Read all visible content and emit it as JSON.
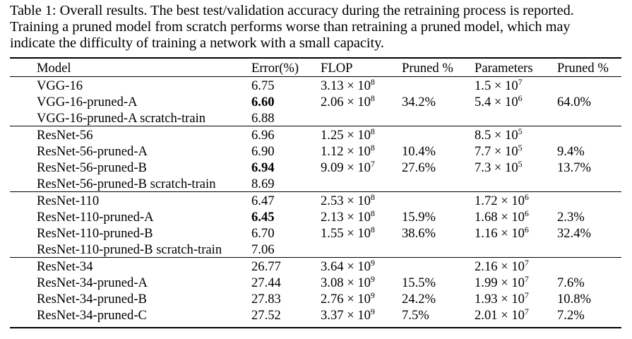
{
  "caption": {
    "line1": "Table 1: Overall results. The best test/validation accuracy during the retraining process is reported.",
    "line2": "Training a pruned model from scratch performs worse than retraining a pruned model, which may",
    "line3": "indicate the difficulty of training a network with a small capacity."
  },
  "headers": {
    "model": "Model",
    "error": "Error(%)",
    "flop": "FLOP",
    "flop_pruned": "Pruned %",
    "params": "Parameters",
    "params_pruned": "Pruned %"
  },
  "groups": [
    {
      "rows": [
        {
          "model": "VGG-16",
          "error": "6.75",
          "bold": false,
          "flop_base": "3.13 × 10",
          "flop_exp": "8",
          "flop_pruned": "",
          "params_base": "1.5 × 10",
          "params_exp": "7",
          "params_pruned": ""
        },
        {
          "model": "VGG-16-pruned-A",
          "error": "6.60",
          "bold": true,
          "flop_base": "2.06 × 10",
          "flop_exp": "8",
          "flop_pruned": "34.2%",
          "params_base": "5.4 × 10",
          "params_exp": "6",
          "params_pruned": "64.0%"
        },
        {
          "model": "VGG-16-pruned-A scratch-train",
          "error": "6.88",
          "bold": false,
          "flop_base": "",
          "flop_exp": "",
          "flop_pruned": "",
          "params_base": "",
          "params_exp": "",
          "params_pruned": ""
        }
      ]
    },
    {
      "rows": [
        {
          "model": "ResNet-56",
          "error": "6.96",
          "bold": false,
          "flop_base": "1.25 × 10",
          "flop_exp": "8",
          "flop_pruned": "",
          "params_base": "8.5 × 10",
          "params_exp": "5",
          "params_pruned": ""
        },
        {
          "model": "ResNet-56-pruned-A",
          "error": "6.90",
          "bold": false,
          "flop_base": "1.12 × 10",
          "flop_exp": "8",
          "flop_pruned": "10.4%",
          "params_base": "7.7 × 10",
          "params_exp": "5",
          "params_pruned": "9.4%"
        },
        {
          "model": "ResNet-56-pruned-B",
          "error": "6.94",
          "bold": true,
          "flop_base": "9.09 × 10",
          "flop_exp": "7",
          "flop_pruned": "27.6%",
          "params_base": "7.3 × 10",
          "params_exp": "5",
          "params_pruned": "13.7%"
        },
        {
          "model": "ResNet-56-pruned-B scratch-train",
          "error": "8.69",
          "bold": false,
          "flop_base": "",
          "flop_exp": "",
          "flop_pruned": "",
          "params_base": "",
          "params_exp": "",
          "params_pruned": ""
        }
      ]
    },
    {
      "rows": [
        {
          "model": "ResNet-110",
          "error": "6.47",
          "bold": false,
          "flop_base": "2.53 × 10",
          "flop_exp": "8",
          "flop_pruned": "",
          "params_base": "1.72 × 10",
          "params_exp": "6",
          "params_pruned": ""
        },
        {
          "model": "ResNet-110-pruned-A",
          "error": "6.45",
          "bold": true,
          "flop_base": "2.13 × 10",
          "flop_exp": "8",
          "flop_pruned": "15.9%",
          "params_base": "1.68 × 10",
          "params_exp": "6",
          "params_pruned": "2.3%"
        },
        {
          "model": "ResNet-110-pruned-B",
          "error": "6.70",
          "bold": false,
          "flop_base": "1.55 × 10",
          "flop_exp": "8",
          "flop_pruned": "38.6%",
          "params_base": "1.16 × 10",
          "params_exp": "6",
          "params_pruned": "32.4%"
        },
        {
          "model": "ResNet-110-pruned-B scratch-train",
          "error": "7.06",
          "bold": false,
          "flop_base": "",
          "flop_exp": "",
          "flop_pruned": "",
          "params_base": "",
          "params_exp": "",
          "params_pruned": ""
        }
      ]
    },
    {
      "rows": [
        {
          "model": "ResNet-34",
          "error": "26.77",
          "bold": false,
          "flop_base": "3.64 × 10",
          "flop_exp": "9",
          "flop_pruned": "",
          "params_base": "2.16 × 10",
          "params_exp": "7",
          "params_pruned": ""
        },
        {
          "model": "ResNet-34-pruned-A",
          "error": "27.44",
          "bold": false,
          "flop_base": "3.08 × 10",
          "flop_exp": "9",
          "flop_pruned": "15.5%",
          "params_base": "1.99 × 10",
          "params_exp": "7",
          "params_pruned": "7.6%"
        },
        {
          "model": "ResNet-34-pruned-B",
          "error": "27.83",
          "bold": false,
          "flop_base": "2.76 × 10",
          "flop_exp": "9",
          "flop_pruned": "24.2%",
          "params_base": "1.93 × 10",
          "params_exp": "7",
          "params_pruned": "10.8%"
        },
        {
          "model": "ResNet-34-pruned-C",
          "error": "27.52",
          "bold": false,
          "flop_base": "3.37 × 10",
          "flop_exp": "9",
          "flop_pruned": "7.5%",
          "params_base": "2.01 × 10",
          "params_exp": "7",
          "params_pruned": "7.2%"
        }
      ]
    }
  ]
}
